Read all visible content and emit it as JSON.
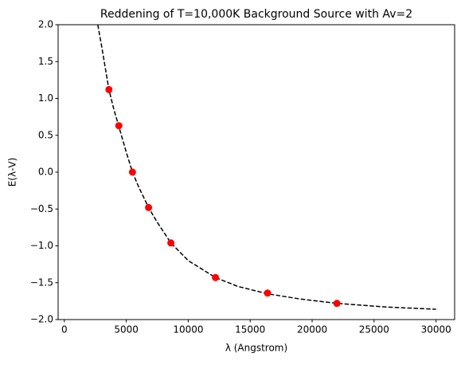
{
  "chart_data": {
    "type": "line",
    "title": "Reddening of T=10,000K Background Source with Av=2",
    "xlabel": "λ (Angstrom)",
    "ylabel": "E(λ-V)",
    "xlim": [
      -500,
      31500
    ],
    "ylim": [
      -2,
      2
    ],
    "xticks": [
      0,
      5000,
      10000,
      15000,
      20000,
      25000,
      30000
    ],
    "yticks": [
      {
        "value": -2,
        "label": "−2.0"
      },
      {
        "value": -1.5,
        "label": "−1.5"
      },
      {
        "value": -1,
        "label": "−1.0"
      },
      {
        "value": -0.5,
        "label": "−0.5"
      },
      {
        "value": 0,
        "label": "0.0"
      },
      {
        "value": 0.5,
        "label": "0.5"
      },
      {
        "value": 1,
        "label": "1.0"
      },
      {
        "value": 1.5,
        "label": "1.5"
      },
      {
        "value": 2,
        "label": "2.0"
      }
    ],
    "curve": {
      "color": "#000000",
      "dashed": true,
      "x": [
        2700,
        3000,
        3300,
        3600,
        4000,
        4400,
        5000,
        5500,
        6000,
        6800,
        7500,
        8600,
        10000,
        12200,
        14000,
        16400,
        19000,
        22000,
        26000,
        30000
      ],
      "y": [
        2.0,
        1.72,
        1.42,
        1.12,
        0.85,
        0.62,
        0.27,
        0.0,
        -0.2,
        -0.48,
        -0.68,
        -0.96,
        -1.2,
        -1.43,
        -1.55,
        -1.65,
        -1.72,
        -1.78,
        -1.83,
        -1.86
      ]
    },
    "points": {
      "color": "#ff0000",
      "x": [
        3600,
        4400,
        5500,
        6800,
        8600,
        12200,
        16400,
        22000
      ],
      "y": [
        1.12,
        0.63,
        0.0,
        -0.48,
        -0.96,
        -1.43,
        -1.64,
        -1.78
      ]
    }
  }
}
